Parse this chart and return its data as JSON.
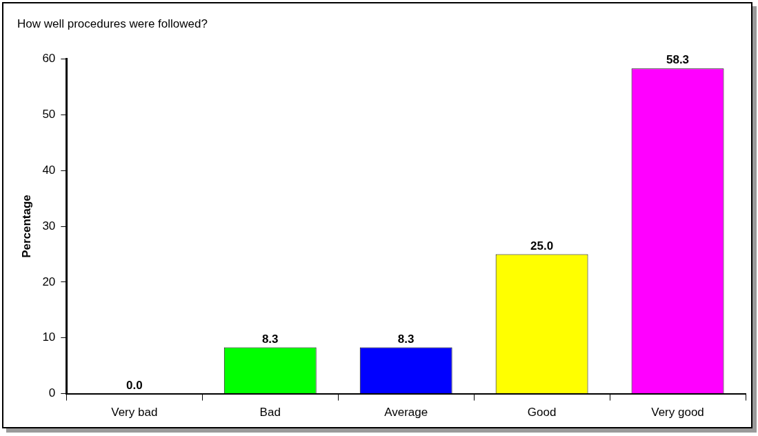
{
  "chart_data": {
    "type": "bar",
    "title": "How well procedures were followed?",
    "ylabel": "Percentage",
    "categories": [
      "Very bad",
      "Bad",
      "Average",
      "Good",
      "Very good"
    ],
    "values": [
      0,
      8.3,
      8.3,
      25,
      58.3
    ],
    "colors": [
      "#ff0000",
      "#00ff00",
      "#0000ff",
      "#ffff00",
      "#ff00ff"
    ],
    "value_labels": [
      "0.0",
      "8.3",
      "8.3",
      "25.0",
      "58.3"
    ],
    "ylim": [
      0,
      60
    ],
    "yticks": [
      0,
      10,
      20,
      30,
      40,
      50,
      60
    ],
    "grid": false,
    "legend": false
  }
}
